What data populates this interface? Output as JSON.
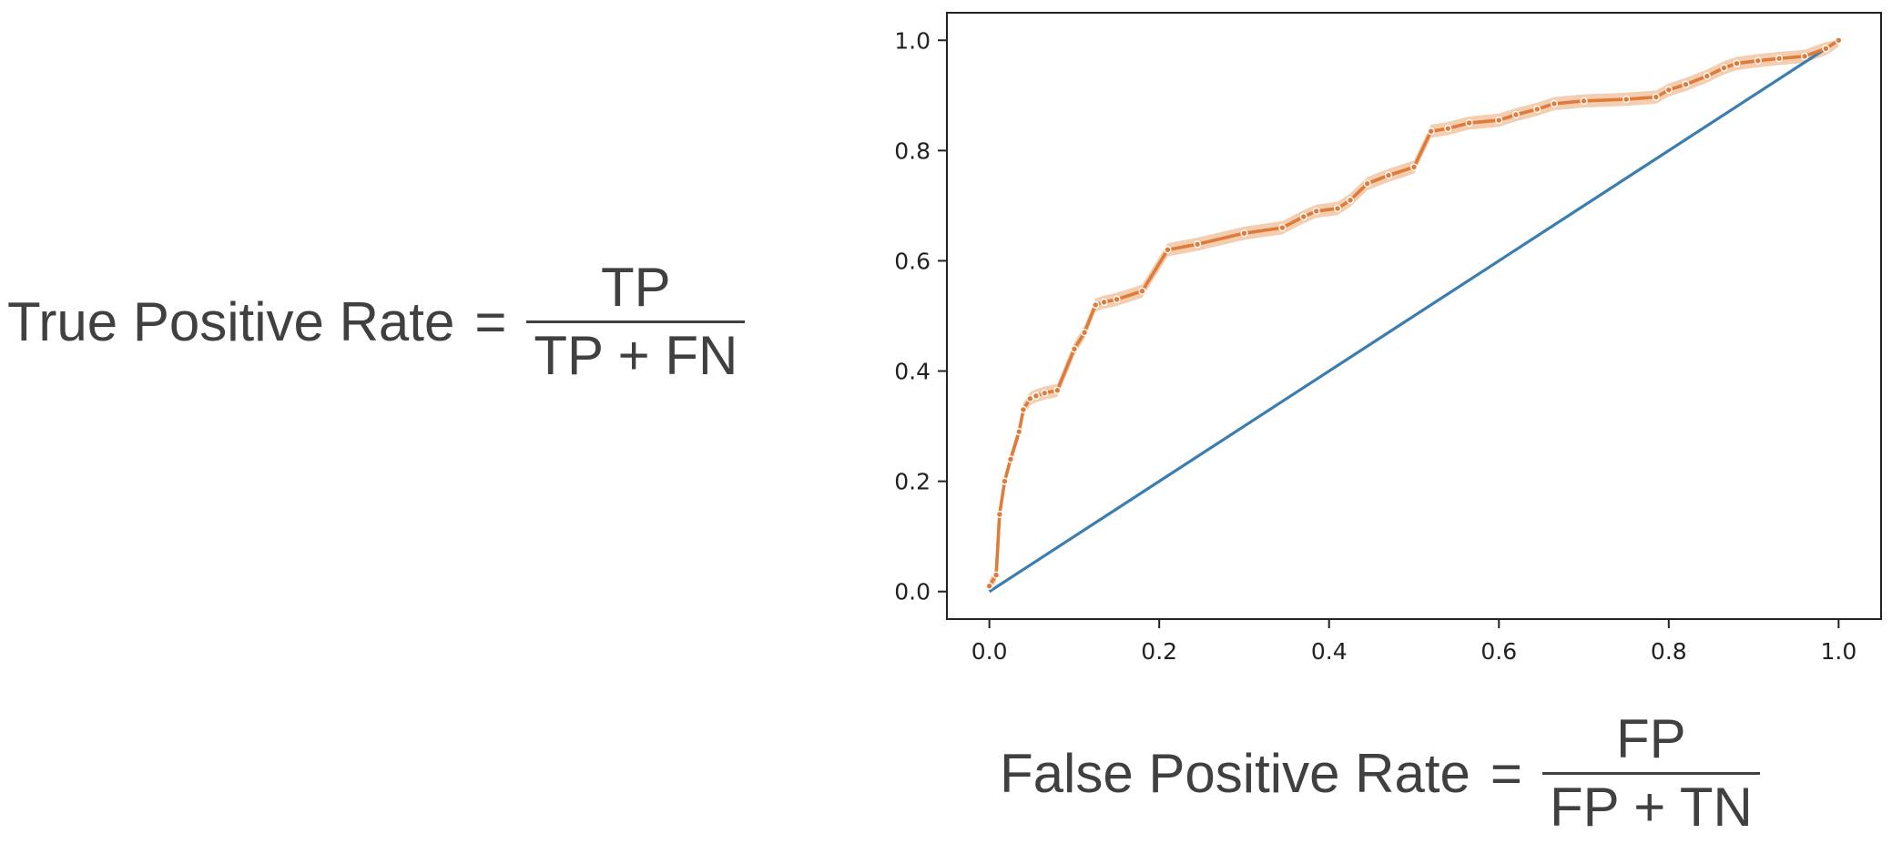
{
  "formulas": {
    "tpr": {
      "lhs": "True Positive Rate",
      "eq": "=",
      "numerator": "TP",
      "denominator": "TP + FN"
    },
    "fpr": {
      "lhs": "False Positive Rate",
      "eq": "=",
      "numerator": "FP",
      "denominator": "FP + TN"
    }
  },
  "chart_data": {
    "type": "line",
    "title": "",
    "xlabel": "",
    "ylabel": "",
    "xlim": [
      -0.05,
      1.05
    ],
    "ylim": [
      -0.05,
      1.05
    ],
    "xticks": [
      "0.0",
      "0.2",
      "0.4",
      "0.6",
      "0.8",
      "1.0"
    ],
    "yticks": [
      "0.0",
      "0.2",
      "0.4",
      "0.6",
      "0.8",
      "1.0"
    ],
    "grid": false,
    "legend": "none",
    "colors": {
      "roc": "#E07B39",
      "roc_band": "#F2C9A8",
      "diagonal": "#3A7DB0",
      "axes": "#222222"
    },
    "series": [
      {
        "x": [
          0.0,
          0.008,
          0.012,
          0.018,
          0.025,
          0.035,
          0.04,
          0.048,
          0.055,
          0.065,
          0.08,
          0.1,
          0.112,
          0.125,
          0.135,
          0.15,
          0.18,
          0.21,
          0.245,
          0.3,
          0.345,
          0.37,
          0.385,
          0.41,
          0.425,
          0.445,
          0.47,
          0.5,
          0.52,
          0.54,
          0.565,
          0.6,
          0.62,
          0.645,
          0.665,
          0.7,
          0.75,
          0.785,
          0.8,
          0.82,
          0.845,
          0.865,
          0.88,
          0.905,
          0.93,
          0.96,
          0.985,
          1.0
        ],
        "y": [
          0.01,
          0.03,
          0.14,
          0.2,
          0.24,
          0.29,
          0.33,
          0.35,
          0.355,
          0.36,
          0.365,
          0.44,
          0.47,
          0.52,
          0.525,
          0.53,
          0.545,
          0.62,
          0.63,
          0.65,
          0.66,
          0.68,
          0.69,
          0.695,
          0.71,
          0.74,
          0.755,
          0.77,
          0.835,
          0.84,
          0.85,
          0.855,
          0.865,
          0.875,
          0.885,
          0.89,
          0.893,
          0.897,
          0.91,
          0.92,
          0.935,
          0.95,
          0.958,
          0.963,
          0.967,
          0.971,
          0.985,
          1.0
        ]
      },
      {
        "x": [
          0.0,
          1.0
        ],
        "y": [
          0.0,
          1.0
        ]
      }
    ]
  }
}
